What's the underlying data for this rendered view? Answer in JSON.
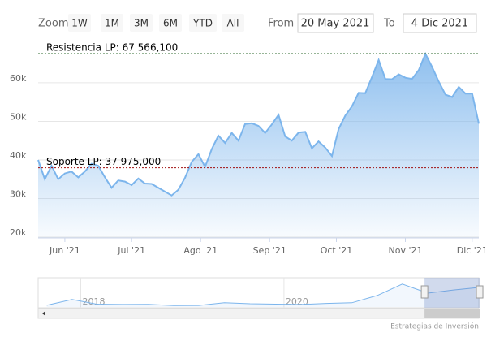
{
  "chart_data": {
    "type": "area",
    "range_selector": {
      "zoom_label": "Zoom",
      "buttons": [
        "1W",
        "1M",
        "3M",
        "6M",
        "YTD",
        "All"
      ],
      "from_label": "From",
      "from": "20 May 2021",
      "to_label": "To",
      "to": "4 Dic 2021"
    },
    "x": [
      "2021-05-20",
      "2021-05-23",
      "2021-05-26",
      "2021-05-29",
      "2021-06-01",
      "2021-06-04",
      "2021-06-07",
      "2021-06-10",
      "2021-06-13",
      "2021-06-16",
      "2021-06-19",
      "2021-06-22",
      "2021-06-25",
      "2021-06-28",
      "2021-07-01",
      "2021-07-04",
      "2021-07-07",
      "2021-07-10",
      "2021-07-13",
      "2021-07-16",
      "2021-07-19",
      "2021-07-22",
      "2021-07-25",
      "2021-07-28",
      "2021-07-31",
      "2021-08-03",
      "2021-08-06",
      "2021-08-09",
      "2021-08-12",
      "2021-08-15",
      "2021-08-18",
      "2021-08-21",
      "2021-08-24",
      "2021-08-27",
      "2021-08-30",
      "2021-09-02",
      "2021-09-05",
      "2021-09-08",
      "2021-09-11",
      "2021-09-14",
      "2021-09-17",
      "2021-09-20",
      "2021-09-23",
      "2021-09-26",
      "2021-09-29",
      "2021-10-02",
      "2021-10-05",
      "2021-10-08",
      "2021-10-11",
      "2021-10-14",
      "2021-10-17",
      "2021-10-20",
      "2021-10-23",
      "2021-10-26",
      "2021-10-29",
      "2021-11-01",
      "2021-11-04",
      "2021-11-07",
      "2021-11-10",
      "2021-11-13",
      "2021-11-16",
      "2021-11-19",
      "2021-11-22",
      "2021-11-25",
      "2021-11-28",
      "2021-12-01",
      "2021-12-04"
    ],
    "series": [
      {
        "color": "#7cb5ec",
        "values": [
          40000,
          35000,
          38500,
          35000,
          36500,
          37000,
          35500,
          37000,
          39000,
          38500,
          35500,
          32800,
          34700,
          34400,
          33500,
          35200,
          33900,
          33800,
          32800,
          31800,
          30800,
          32300,
          35400,
          39500,
          41500,
          38200,
          42800,
          46300,
          44400,
          47000,
          45000,
          49300,
          49500,
          48800,
          47000,
          49200,
          51700,
          46100,
          45000,
          47100,
          47300,
          43000,
          44800,
          43200,
          41000,
          48000,
          51500,
          53900,
          57400,
          57300,
          61500,
          65900,
          61000,
          60900,
          62200,
          61300,
          61000,
          63300,
          67500,
          64100,
          60300,
          56900,
          56300,
          58900,
          57200,
          57200,
          49400
        ]
      }
    ],
    "xlim": [
      "2021-05-20",
      "2021-12-04"
    ],
    "xticks": [
      {
        "value": "2021-06-01",
        "label": "Jun '21"
      },
      {
        "value": "2021-07-01",
        "label": "Jul '21"
      },
      {
        "value": "2021-08-01",
        "label": "Ago '21"
      },
      {
        "value": "2021-09-01",
        "label": "Sep '21"
      },
      {
        "value": "2021-10-01",
        "label": "Oct '21"
      },
      {
        "value": "2021-11-01",
        "label": "Nov '21"
      },
      {
        "value": "2021-12-01",
        "label": "Dic '21"
      }
    ],
    "ylim": [
      19800,
      70500
    ],
    "yticks": [
      {
        "value": 20000,
        "label": "20k"
      },
      {
        "value": 30000,
        "label": "30k"
      },
      {
        "value": 40000,
        "label": "40k"
      },
      {
        "value": 50000,
        "label": "50k"
      },
      {
        "value": 60000,
        "label": "60k"
      }
    ],
    "grid": true,
    "plot_lines": [
      {
        "value": 67566.1,
        "label": "Resistencia LP: 67 566,100",
        "color": "#2f6b2f"
      },
      {
        "value": 37975,
        "label": "Soporte LP: 37 975,000",
        "color": "#a01010"
      }
    ],
    "navigator": {
      "x": [
        "2017-09",
        "2017-12",
        "2018-03",
        "2018-06",
        "2018-09",
        "2018-12",
        "2019-03",
        "2019-06",
        "2019-09",
        "2019-12",
        "2020-03",
        "2020-06",
        "2020-09",
        "2020-12",
        "2021-03",
        "2021-06",
        "2021-09",
        "2021-12"
      ],
      "values": [
        4300,
        19000,
        7000,
        6400,
        6600,
        3700,
        4000,
        11000,
        8300,
        7200,
        6400,
        9100,
        10800,
        29000,
        58000,
        35000,
        43000,
        49400
      ],
      "xlim": [
        "2017-08",
        "2021-12"
      ],
      "ylim": [
        0,
        70000
      ],
      "xticks": [
        {
          "value": "2018-01",
          "label": "2018"
        },
        {
          "value": "2020-01",
          "label": "2020"
        }
      ]
    },
    "credit": "Estrategias de Inversión"
  }
}
